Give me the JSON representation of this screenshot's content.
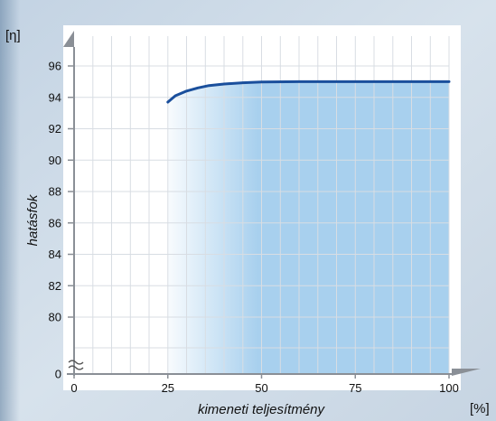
{
  "chart_data": {
    "type": "line",
    "title": "",
    "ylabel": "hatásfok",
    "xlabel": "kimeneti teljesítmény",
    "y_unit": "[η]",
    "x_unit": "[%]",
    "xlim": [
      0,
      100
    ],
    "ylim": [
      78,
      96
    ],
    "y_axis_break": true,
    "grid": true,
    "legend": "none",
    "x_ticks": [
      0,
      25,
      50,
      75,
      100
    ],
    "y_ticks": [
      0,
      80,
      82,
      84,
      86,
      88,
      90,
      92,
      94,
      96
    ],
    "x_gridlines": [
      0,
      5,
      10,
      15,
      20,
      25,
      30,
      35,
      40,
      45,
      50,
      55,
      60,
      65,
      70,
      75,
      80,
      85,
      90,
      95,
      100
    ],
    "y_gridlines": [
      80,
      82,
      84,
      86,
      88,
      90,
      92,
      94,
      96
    ],
    "series": [
      {
        "color": "#1a4f9c",
        "x": [
          25,
          27,
          30,
          33,
          36,
          40,
          45,
          50,
          60,
          70,
          80,
          90,
          100
        ],
        "y": [
          93.7,
          94.1,
          94.4,
          94.6,
          94.75,
          94.85,
          94.93,
          94.98,
          95.0,
          95.0,
          95.0,
          95.0,
          95.0
        ]
      }
    ],
    "fill": {
      "from_x": 25,
      "to_x": 100,
      "color": "#a8d0ee"
    }
  }
}
